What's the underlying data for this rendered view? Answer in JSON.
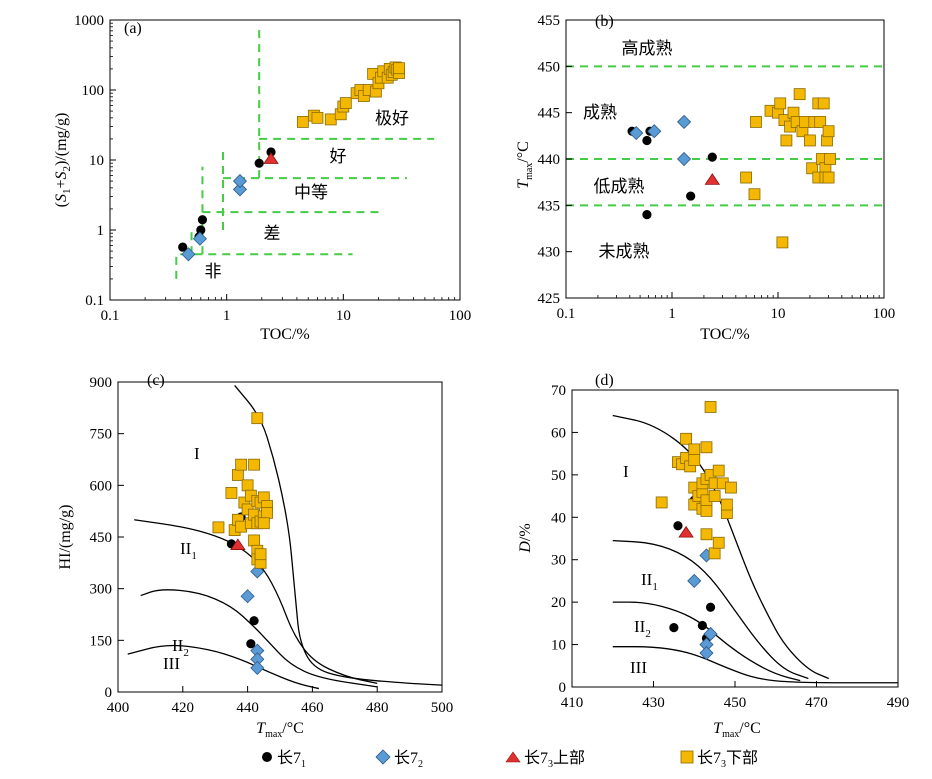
{
  "colors": {
    "chang71": "#000000",
    "chang72": "#5b9bd5",
    "chang73_upper": "#e03030",
    "chang73_lower": "#f5b800",
    "boundary_dashed": "#44cc44",
    "curve": "#000000"
  },
  "legend": [
    {
      "name": "长7",
      "sub": "1",
      "suffix": "",
      "marker": "circle",
      "color": "#000000"
    },
    {
      "name": "长7",
      "sub": "2",
      "suffix": "",
      "marker": "diamond",
      "color": "#5b9bd5"
    },
    {
      "name": "长7",
      "sub": "3",
      "suffix": "上部",
      "marker": "triangle",
      "color": "#e03030"
    },
    {
      "name": "长7",
      "sub": "3",
      "suffix": "下部",
      "marker": "square",
      "color": "#f5b800"
    }
  ],
  "chart_data": [
    {
      "panel": "(a)",
      "type": "scatter",
      "xlabel": "TOC/%",
      "ylabel": "(S1+S2)/(mg/g)",
      "xscale": "log",
      "yscale": "log",
      "xlim": [
        0.1,
        100
      ],
      "ylim": [
        0.1,
        1000
      ],
      "xticks": [
        "0.1",
        "1",
        "10",
        "100"
      ],
      "yticks": [
        "0.1",
        "1",
        "10",
        "100",
        "1000"
      ],
      "zone_labels": [
        "极好",
        "好",
        "中等",
        "差",
        "非"
      ],
      "series": [
        {
          "name": "长71",
          "marker": "circle",
          "points": [
            [
              0.42,
              0.57
            ],
            [
              0.58,
              0.8
            ],
            [
              0.6,
              1.0
            ],
            [
              0.62,
              1.4
            ],
            [
              1.9,
              9.0
            ],
            [
              2.4,
              13.0
            ]
          ]
        },
        {
          "name": "长72",
          "marker": "diamond",
          "points": [
            [
              0.47,
              0.45
            ],
            [
              0.59,
              0.75
            ],
            [
              1.3,
              3.8
            ],
            [
              1.3,
              5.0
            ]
          ]
        },
        {
          "name": "长73上部",
          "marker": "triangle",
          "points": [
            [
              2.4,
              10.5
            ]
          ]
        },
        {
          "name": "长73下部",
          "marker": "square",
          "points": [
            [
              4.5,
              35
            ],
            [
              5.6,
              43
            ],
            [
              6.0,
              40
            ],
            [
              7.8,
              38
            ],
            [
              9.5,
              45
            ],
            [
              10,
              58
            ],
            [
              10.5,
              65
            ],
            [
              13,
              90
            ],
            [
              14,
              100
            ],
            [
              15,
              82
            ],
            [
              16.5,
              100
            ],
            [
              18,
              170
            ],
            [
              19,
              95
            ],
            [
              20,
              125
            ],
            [
              21,
              150
            ],
            [
              22,
              185
            ],
            [
              24,
              150
            ],
            [
              25,
              200
            ],
            [
              26,
              165
            ],
            [
              27,
              180
            ],
            [
              28,
              210
            ],
            [
              29,
              195
            ],
            [
              30,
              175
            ],
            [
              30,
              205
            ]
          ]
        }
      ]
    },
    {
      "panel": "(b)",
      "type": "scatter",
      "xlabel": "TOC/%",
      "ylabel": "Tmax/°C",
      "xscale": "log",
      "xlim": [
        0.1,
        100
      ],
      "ylim": [
        425,
        455
      ],
      "xticks": [
        "0.1",
        "1",
        "10",
        "100"
      ],
      "yticks": [
        "425",
        "430",
        "435",
        "440",
        "445",
        "450",
        "455"
      ],
      "zone_labels": [
        "高成熟",
        "成熟",
        "低成熟",
        "未成熟"
      ],
      "series": [
        {
          "name": "长71",
          "marker": "circle",
          "points": [
            [
              0.42,
              443
            ],
            [
              0.58,
              442
            ],
            [
              0.62,
              443
            ],
            [
              2.4,
              440.2
            ],
            [
              1.5,
              436
            ],
            [
              0.58,
              434
            ]
          ]
        },
        {
          "name": "长72",
          "marker": "diamond",
          "points": [
            [
              0.46,
              442.8
            ],
            [
              0.68,
              443
            ],
            [
              1.3,
              440
            ],
            [
              1.3,
              444
            ]
          ]
        },
        {
          "name": "长73上部",
          "marker": "triangle",
          "points": [
            [
              2.4,
              437.8
            ]
          ]
        },
        {
          "name": "长73下部",
          "marker": "square",
          "points": [
            [
              5.0,
              438
            ],
            [
              6.0,
              436.2
            ],
            [
              6.2,
              444
            ],
            [
              8.5,
              445.2
            ],
            [
              10,
              445
            ],
            [
              10.5,
              446
            ],
            [
              11,
              431
            ],
            [
              11.5,
              444.2
            ],
            [
              12,
              442
            ],
            [
              13,
              443.5
            ],
            [
              14,
              445
            ],
            [
              15,
              444
            ],
            [
              16,
              447
            ],
            [
              17,
              443
            ],
            [
              18,
              444
            ],
            [
              20,
              442
            ],
            [
              21,
              439
            ],
            [
              22,
              444
            ],
            [
              24,
              438
            ],
            [
              24,
              446
            ],
            [
              25,
              444
            ],
            [
              26,
              440
            ],
            [
              27,
              446
            ],
            [
              28,
              439
            ],
            [
              28,
              438
            ],
            [
              29,
              442
            ],
            [
              30,
              443
            ],
            [
              30,
              438
            ],
            [
              31,
              440
            ]
          ]
        }
      ]
    },
    {
      "panel": "(c)",
      "type": "scatter",
      "xlabel": "Tmax/°C",
      "ylabel": "HI/(mg/g)",
      "xlim": [
        400,
        500
      ],
      "ylim": [
        0,
        900
      ],
      "xticks": [
        "400",
        "420",
        "440",
        "460",
        "480",
        "500"
      ],
      "yticks": [
        "0",
        "150",
        "300",
        "450",
        "600",
        "750",
        "900"
      ],
      "kerogen_labels": [
        "I",
        "II1",
        "II2",
        "III"
      ],
      "series": [
        {
          "name": "长71",
          "marker": "circle",
          "points": [
            [
              435,
              430
            ],
            [
              438,
              508
            ],
            [
              442,
              207
            ],
            [
              441,
              140
            ]
          ]
        },
        {
          "name": "长72",
          "marker": "diamond",
          "points": [
            [
              440,
              278
            ],
            [
              443,
              350
            ],
            [
              443,
              120
            ],
            [
              443,
              95
            ],
            [
              443,
              70
            ]
          ]
        },
        {
          "name": "长73上部",
          "marker": "triangle",
          "points": [
            [
              437,
              428
            ]
          ]
        },
        {
          "name": "长73下部",
          "marker": "square",
          "points": [
            [
              431,
              478
            ],
            [
              435,
              578
            ],
            [
              436,
              470
            ],
            [
              437,
              630
            ],
            [
              437,
              500
            ],
            [
              438,
              660
            ],
            [
              438,
              480
            ],
            [
              439,
              550
            ],
            [
              440,
              600
            ],
            [
              440,
              530
            ],
            [
              441,
              490
            ],
            [
              441,
              570
            ],
            [
              442,
              440
            ],
            [
              442,
              515
            ],
            [
              443,
              490
            ],
            [
              443,
              795
            ],
            [
              443,
              555
            ],
            [
              444,
              495
            ],
            [
              444,
              550
            ],
            [
              445,
              510
            ],
            [
              445,
              565
            ],
            [
              446,
              540
            ],
            [
              446,
              520
            ],
            [
              442,
              660
            ],
            [
              443,
              410
            ],
            [
              443,
              385
            ],
            [
              444,
              375
            ],
            [
              444,
              400
            ],
            [
              445,
              490
            ]
          ]
        }
      ]
    },
    {
      "panel": "(d)",
      "type": "scatter",
      "xlabel": "Tmax/°C",
      "ylabel": "D/%",
      "xlim": [
        410,
        490
      ],
      "ylim": [
        0,
        70
      ],
      "xticks": [
        "410",
        "430",
        "450",
        "470",
        "490"
      ],
      "yticks": [
        "0",
        "10",
        "20",
        "30",
        "40",
        "50",
        "60",
        "70"
      ],
      "kerogen_labels": [
        "I",
        "II1",
        "II2",
        "III"
      ],
      "series": [
        {
          "name": "长71",
          "marker": "circle",
          "points": [
            [
              436,
              38
            ],
            [
              440,
              44
            ],
            [
              435,
              14
            ],
            [
              442,
              14.5
            ],
            [
              444,
              18.8
            ],
            [
              443,
              11.5
            ]
          ]
        },
        {
          "name": "长72",
          "marker": "diamond",
          "points": [
            [
              440,
              25
            ],
            [
              443,
              31
            ],
            [
              444,
              12.5
            ],
            [
              443,
              10
            ],
            [
              443,
              8
            ]
          ]
        },
        {
          "name": "长73上部",
          "marker": "triangle",
          "points": [
            [
              438,
              36.5
            ]
          ]
        },
        {
          "name": "长73下部",
          "marker": "square",
          "points": [
            [
              432,
              43.5
            ],
            [
              436,
              53
            ],
            [
              437,
              52.5
            ],
            [
              438,
              58.5
            ],
            [
              438,
              54
            ],
            [
              439,
              52
            ],
            [
              440,
              47
            ],
            [
              440,
              43
            ],
            [
              440,
              56
            ],
            [
              440,
              53.5
            ],
            [
              441,
              45
            ],
            [
              442,
              42
            ],
            [
              442,
              46
            ],
            [
              442,
              48
            ],
            [
              443,
              49
            ],
            [
              443,
              44
            ],
            [
              443,
              41.5
            ],
            [
              443,
              56.5
            ],
            [
              443,
              36
            ],
            [
              444,
              66
            ],
            [
              444,
              50
            ],
            [
              445,
              45
            ],
            [
              445,
              48
            ],
            [
              445,
              31.5
            ],
            [
              446,
              51
            ],
            [
              446,
              34
            ],
            [
              447,
              48
            ],
            [
              448,
              41
            ],
            [
              448,
              43
            ],
            [
              449,
              47
            ]
          ]
        }
      ]
    }
  ],
  "labels": {
    "a_panel": "(a)",
    "b_panel": "(b)",
    "c_panel": "(c)",
    "d_panel": "(d)",
    "a_xlabel": "TOC/%",
    "b_xlabel": "TOC/%",
    "c_ylabel": "HI/(mg/g)",
    "a_z1": "极好",
    "a_z2": "好",
    "a_z3": "中等",
    "a_z4": "差",
    "a_z5": "非",
    "b_z1": "高成熟",
    "b_z2": "成熟",
    "b_z3": "低成熟",
    "b_z4": "未成熟",
    "k1": "I",
    "k2": "II",
    "k2sub1": "1",
    "k2sub2": "2",
    "k3": "III",
    "tmax_unit": "/°C",
    "tmax_sub": "max"
  }
}
